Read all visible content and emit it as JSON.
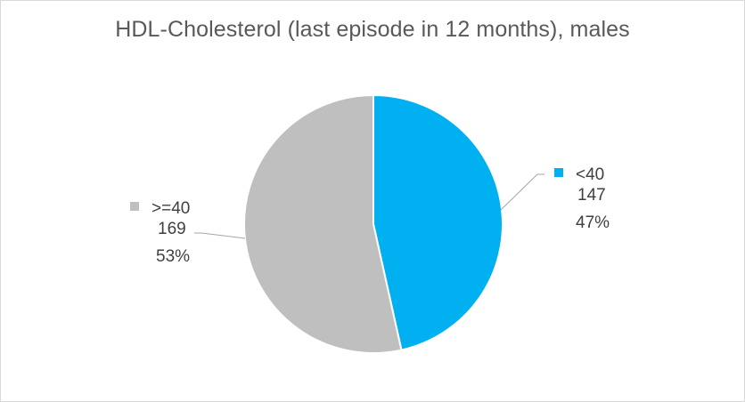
{
  "chart_data": {
    "type": "pie",
    "title": "HDL-Cholesterol (last episode in 12 months), males",
    "slices": [
      {
        "label": "<40",
        "value": 147,
        "percent": "47%",
        "color": "#00b0f0"
      },
      {
        "label": ">=40",
        "value": 169,
        "percent": "53%",
        "color": "#bfbfbf"
      }
    ],
    "start_angle": "12 o'clock",
    "direction": "clockwise",
    "legend_placement": "data labels beside slices",
    "border_color": "#d9d9d9"
  }
}
